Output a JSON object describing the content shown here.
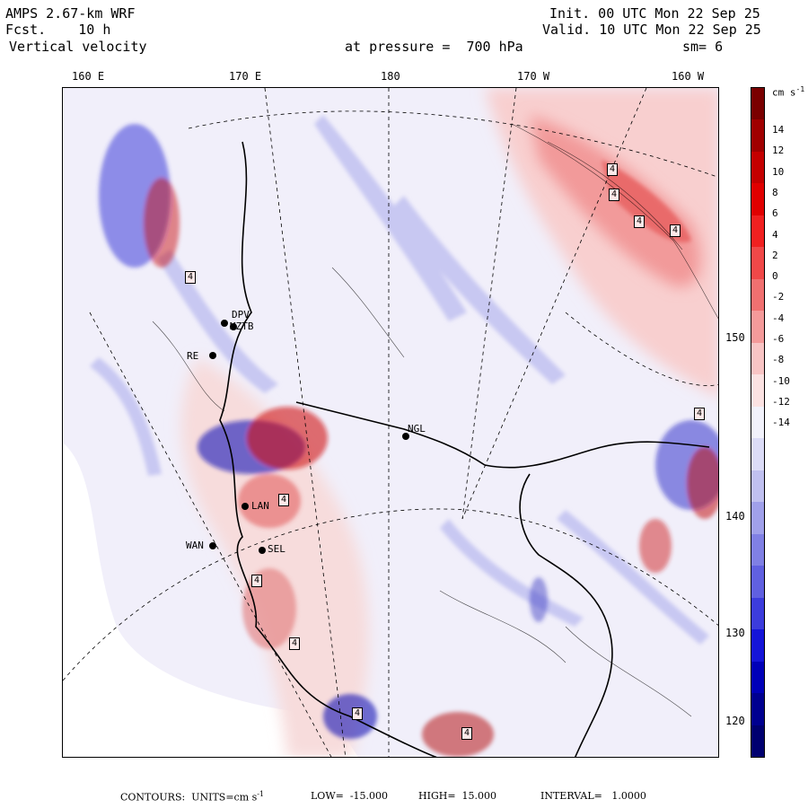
{
  "header": {
    "model": "AMPS 2.67-km WRF",
    "fcst_label": "Fcst.",
    "fcst_value": "10 h",
    "field": "Vertical velocity",
    "init": "Init. 00 UTC Mon 22 Sep 25",
    "valid": "Valid. 10 UTC Mon 22 Sep 25",
    "pressure": "at pressure =  700 hPa",
    "smoothing": "sm= 6"
  },
  "top_ticks": [
    "160 E",
    "170 E",
    "180",
    "170 W",
    "160 W"
  ],
  "right_ticks": [
    "150 W",
    "140 W",
    "130 W",
    "120 W"
  ],
  "colorbar": {
    "units_label": "cm s",
    "units_exp": "-1",
    "tick_labels": [
      "14",
      "12",
      "10",
      "8",
      "6",
      "4",
      "2",
      "0",
      "-2",
      "-4",
      "-6",
      "-8",
      "-10",
      "-12",
      "-14"
    ],
    "colors": [
      "#7a0000",
      "#a00000",
      "#c40000",
      "#e00000",
      "#f02020",
      "#f04848",
      "#f07070",
      "#f49a9a",
      "#f8c4c4",
      "#fbe2e2",
      "#f2f2fb",
      "#dcdcf7",
      "#c0c0f0",
      "#a0a0ea",
      "#8080e4",
      "#6060e0",
      "#3c3cdc",
      "#1414d8",
      "#0000b8",
      "#000090",
      "#000070"
    ]
  },
  "stations": [
    "NGL",
    "DPV",
    "MZTB",
    "RE",
    "LAN",
    "WAN",
    "SEL"
  ],
  "marker_label": "4",
  "footer": {
    "contours": "CONTOURS:  UNITS=cm s",
    "units_exp": "-1",
    "low": "LOW=  -15.000",
    "high": "HIGH=  15.000",
    "interval": "INTERVAL=   1.0000"
  }
}
